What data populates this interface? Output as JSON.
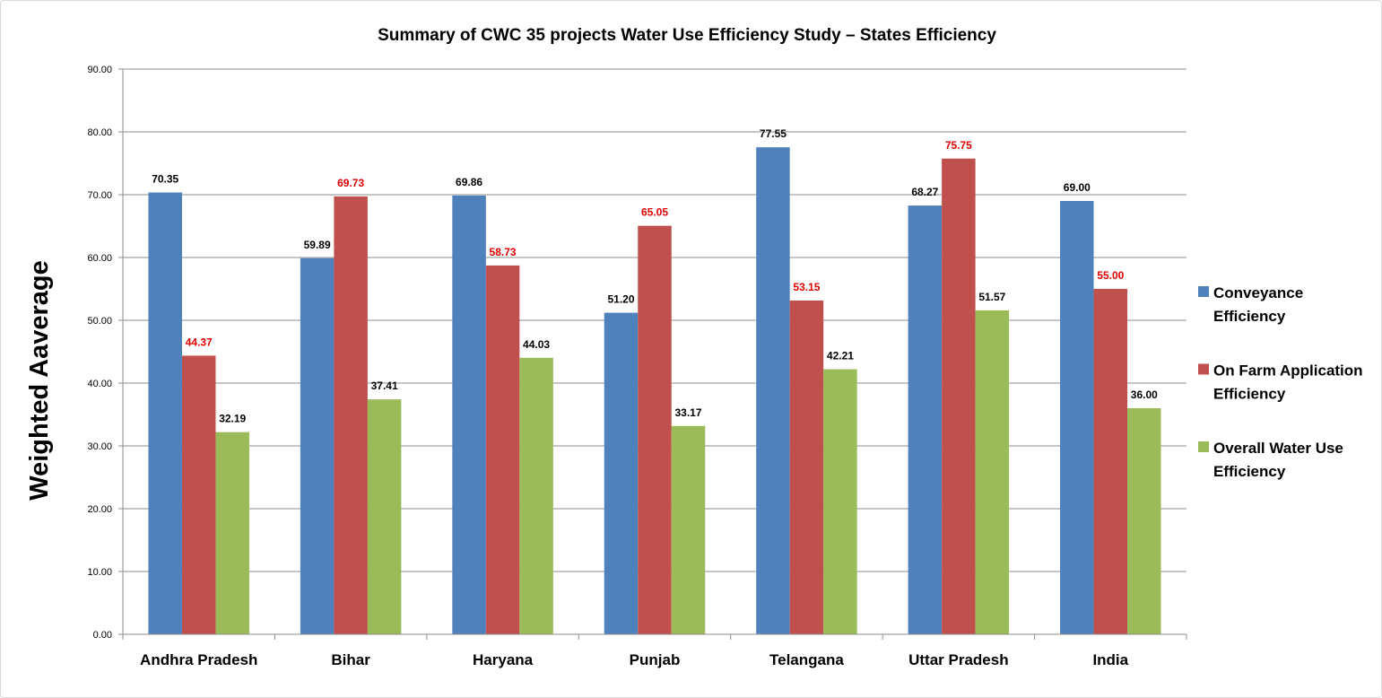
{
  "chart_data": {
    "type": "bar",
    "title": "Summary of CWC 35 projects Water Use Efficiency Study – States Efficiency",
    "xlabel": "",
    "ylabel": "Weighted Aaverage",
    "ylim": [
      0,
      90
    ],
    "yticks": [
      "0.00",
      "10.00",
      "20.00",
      "30.00",
      "40.00",
      "50.00",
      "60.00",
      "70.00",
      "80.00",
      "90.00"
    ],
    "grid": true,
    "legend_position": "right",
    "categories": [
      "Andhra Pradesh",
      "Bihar",
      "Haryana",
      "Punjab",
      "Telangana",
      "Uttar Pradesh",
      "India"
    ],
    "series": [
      {
        "name": "Conveyance Efficiency",
        "legend_lines": [
          "Conveyance",
          "Efficiency"
        ],
        "color": "#4f81bd",
        "label_color": "#000000",
        "values": [
          70.35,
          59.89,
          69.86,
          51.2,
          77.55,
          68.27,
          69.0
        ],
        "labels": [
          "70.35",
          "59.89",
          "69.86",
          "51.20",
          "77.55",
          "68.27",
          "69.00"
        ]
      },
      {
        "name": "On Farm Application Efficiency",
        "legend_lines": [
          "On Farm Application",
          "Efficiency"
        ],
        "color": "#c0504d",
        "label_color": "#e00000",
        "values": [
          44.37,
          69.73,
          58.73,
          65.05,
          53.15,
          75.75,
          55.0
        ],
        "labels": [
          "44.37",
          "69.73",
          "58.73",
          "65.05",
          "53.15",
          "75.75",
          "55.00"
        ]
      },
      {
        "name": "Overall Water Use Efficiency",
        "legend_lines": [
          "Overall Water Use",
          "Efficiency"
        ],
        "color": "#9bbb59",
        "label_color": "#000000",
        "values": [
          32.19,
          37.41,
          44.03,
          33.17,
          42.21,
          51.57,
          36.0
        ],
        "labels": [
          "32.19",
          "37.41",
          "44.03",
          "33.17",
          "42.21",
          "51.57",
          "36.00"
        ]
      }
    ]
  }
}
